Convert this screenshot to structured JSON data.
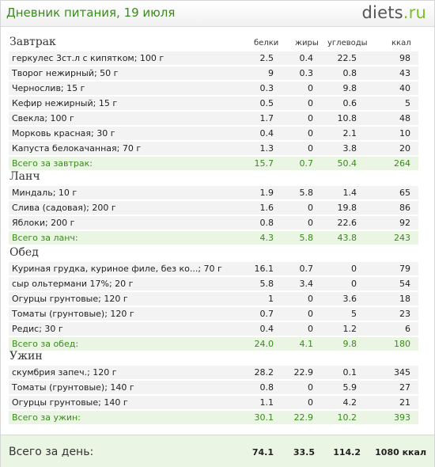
{
  "header": {
    "title": "Дневник питания, 19 июля",
    "logo_main": "diets",
    "logo_suffix": ".ru"
  },
  "columns": {
    "proteins": "белки",
    "fats": "жиры",
    "carbs": "углеводы",
    "kcal": "ккал"
  },
  "meals": [
    {
      "title": "Завтрак",
      "items": [
        {
          "name": "геркулес  3ст.л с кипятком; 100 г",
          "p": "2.5",
          "f": "0.4",
          "c": "22.5",
          "k": "98"
        },
        {
          "name": "Творог нежирный; 50 г",
          "p": "9",
          "f": "0.3",
          "c": "0.8",
          "k": "43"
        },
        {
          "name": "Чернослив; 15 г",
          "p": "0.3",
          "f": "0",
          "c": "9.8",
          "k": "40"
        },
        {
          "name": "Кефир нежирный; 15 г",
          "p": "0.5",
          "f": "0",
          "c": "0.6",
          "k": "5"
        },
        {
          "name": "Свекла; 100 г",
          "p": "1.7",
          "f": "0",
          "c": "10.8",
          "k": "48"
        },
        {
          "name": "Морковь красная; 30 г",
          "p": "0.4",
          "f": "0",
          "c": "2.1",
          "k": "10"
        },
        {
          "name": "Капуста белокачанная; 70 г",
          "p": "1.3",
          "f": "0",
          "c": "3.8",
          "k": "20"
        }
      ],
      "total": {
        "name": "Всего за завтрак:",
        "p": "15.7",
        "f": "0.7",
        "c": "50.4",
        "k": "264"
      }
    },
    {
      "title": "Ланч",
      "items": [
        {
          "name": "Миндаль; 10 г",
          "p": "1.9",
          "f": "5.8",
          "c": "1.4",
          "k": "65"
        },
        {
          "name": "Слива (садовая); 200 г",
          "p": "1.6",
          "f": "0",
          "c": "19.8",
          "k": "86"
        },
        {
          "name": "Яблоки; 200 г",
          "p": "0.8",
          "f": "0",
          "c": "22.6",
          "k": "92"
        }
      ],
      "total": {
        "name": "Всего за ланч:",
        "p": "4.3",
        "f": "5.8",
        "c": "43.8",
        "k": "243"
      }
    },
    {
      "title": "Обед",
      "items": [
        {
          "name": "Куриная грудка, куриное филе, без ко...; 70 г",
          "p": "16.1",
          "f": "0.7",
          "c": "0",
          "k": "79"
        },
        {
          "name": "сыр ольтермани 17%; 20 г",
          "p": "5.8",
          "f": "3.4",
          "c": "0",
          "k": "54"
        },
        {
          "name": "Огурцы грунтовые; 120 г",
          "p": "1",
          "f": "0",
          "c": "3.6",
          "k": "18"
        },
        {
          "name": "Томаты (грунтовые); 120 г",
          "p": "0.7",
          "f": "0",
          "c": "5",
          "k": "23"
        },
        {
          "name": "Редис; 30 г",
          "p": "0.4",
          "f": "0",
          "c": "1.2",
          "k": "6"
        }
      ],
      "total": {
        "name": "Всего за обед:",
        "p": "24.0",
        "f": "4.1",
        "c": "9.8",
        "k": "180"
      }
    },
    {
      "title": "Ужин",
      "items": [
        {
          "name": "скумбрия запеч.; 120 г",
          "p": "28.2",
          "f": "22.9",
          "c": "0.1",
          "k": "345"
        },
        {
          "name": "Томаты (грунтовые); 140 г",
          "p": "0.8",
          "f": "0",
          "c": "5.9",
          "k": "27"
        },
        {
          "name": "Огурцы грунтовые; 140 г",
          "p": "1.1",
          "f": "0",
          "c": "4.2",
          "k": "21"
        }
      ],
      "total": {
        "name": "Всего за ужин:",
        "p": "30.1",
        "f": "22.9",
        "c": "10.2",
        "k": "393"
      }
    }
  ],
  "day_total": {
    "label": "Всего за день:",
    "p": "74.1",
    "f": "33.5",
    "c": "114.2",
    "k": "1080 ккал"
  }
}
